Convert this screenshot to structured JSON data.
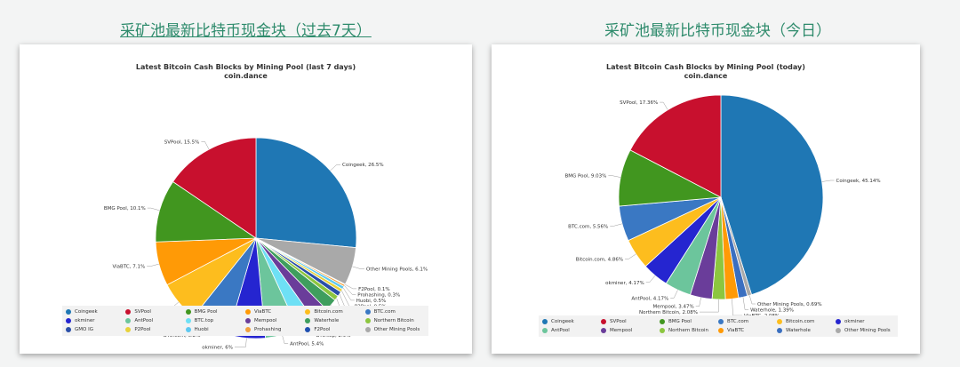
{
  "page": {
    "heading_left": "采矿池最新比特币现金块（过去7天）",
    "heading_right": "采矿池最新比特币现金块（今日）"
  },
  "chart_data": [
    {
      "type": "pie",
      "title": "Latest Bitcoin Cash Blocks by Mining Pool (last 7 days)",
      "subtitle": "coin.dance",
      "slices": [
        {
          "label": "Coingeek",
          "value": 26.5,
          "display": "26.5%",
          "color": "#1f77b4"
        },
        {
          "label": "Other Mining Pools",
          "value": 6.1,
          "display": "6.1%",
          "color": "#a9a9a9"
        },
        {
          "label": "F2Pool",
          "value": 0.1,
          "display": "0.1%",
          "color": "#1f4fb0"
        },
        {
          "label": "Prohashing",
          "value": 0.3,
          "display": "0.3%",
          "color": "#f2a03d"
        },
        {
          "label": "Huobi",
          "value": 0.5,
          "display": "0.5%",
          "color": "#5ec8f0"
        },
        {
          "label": "P2Pool",
          "value": 0.5,
          "display": "0.5%",
          "color": "#e8d23a"
        },
        {
          "label": "GMO IG",
          "value": 0.8,
          "display": "0.8%",
          "color": "#2a4fa8"
        },
        {
          "label": "Northern Bitcoin",
          "value": 0.8,
          "display": "0.8%",
          "color": "#8cc63f"
        },
        {
          "label": "Waterhole",
          "value": 2,
          "display": "2%",
          "color": "#3f9e5e"
        },
        {
          "label": "Mempool",
          "value": 2.6,
          "display": "2.6%",
          "color": "#6a3d9a"
        },
        {
          "label": "BTC.top",
          "value": 2.9,
          "display": "2.9%",
          "color": "#6ee0f5"
        },
        {
          "label": "AntPool",
          "value": 5.4,
          "display": "5.4%",
          "color": "#6cc59c"
        },
        {
          "label": "okminer",
          "value": 6,
          "display": "6%",
          "color": "#2525d0"
        },
        {
          "label": "BTC.com",
          "value": 6.2,
          "display": "6.2%",
          "color": "#3a78c3"
        },
        {
          "label": "Bitcoin.com",
          "value": 6.6,
          "display": "6.6%",
          "color": "#fdbd1e"
        },
        {
          "label": "ViaBTC",
          "value": 7.1,
          "display": "7.1%",
          "color": "#ff9a06"
        },
        {
          "label": "BMG Pool",
          "value": 10.1,
          "display": "10.1%",
          "color": "#41961f"
        },
        {
          "label": "SVPool",
          "value": 15.5,
          "display": "15.5%",
          "color": "#c8102e"
        }
      ],
      "legend": [
        {
          "label": "Coingeek",
          "color": "#1f77b4"
        },
        {
          "label": "SVPool",
          "color": "#c8102e"
        },
        {
          "label": "BMG Pool",
          "color": "#41961f"
        },
        {
          "label": "ViaBTC",
          "color": "#ff9a06"
        },
        {
          "label": "Bitcoin.com",
          "color": "#fdbd1e"
        },
        {
          "label": "BTC.com",
          "color": "#3a78c3"
        },
        {
          "label": "okminer",
          "color": "#2525d0"
        },
        {
          "label": "AntPool",
          "color": "#6cc59c"
        },
        {
          "label": "BTC.top",
          "color": "#6ee0f5"
        },
        {
          "label": "Mempool",
          "color": "#6a3d9a"
        },
        {
          "label": "Waterhole",
          "color": "#3f9e5e"
        },
        {
          "label": "Northern Bitcoin",
          "color": "#8cc63f"
        },
        {
          "label": "GMO IG",
          "color": "#2a4fa8"
        },
        {
          "label": "P2Pool",
          "color": "#e8d23a"
        },
        {
          "label": "Huobi",
          "color": "#5ec8f0"
        },
        {
          "label": "Prohashing",
          "color": "#f2a03d"
        },
        {
          "label": "F2Pool",
          "color": "#1f4fb0"
        },
        {
          "label": "Other Mining Pools",
          "color": "#a9a9a9"
        }
      ]
    },
    {
      "type": "pie",
      "title": "Latest Bitcoin Cash Blocks by Mining Pool (today)",
      "subtitle": "coin.dance",
      "slices": [
        {
          "label": "Coingeek",
          "value": 45.14,
          "display": "45.14%",
          "color": "#1f77b4"
        },
        {
          "label": "Other Mining Pools",
          "value": 0.69,
          "display": "0.69%",
          "color": "#a9a9a9"
        },
        {
          "label": "Waterhole",
          "value": 1.39,
          "display": "1.39%",
          "color": "#3a6fc0"
        },
        {
          "label": "ViaBTC",
          "value": 2.08,
          "display": "2.08%",
          "color": "#ff9a06"
        },
        {
          "label": "Northern Bitcoin",
          "value": 2.08,
          "display": "2.08%",
          "color": "#8cc63f"
        },
        {
          "label": "Mempool",
          "value": 3.47,
          "display": "3.47%",
          "color": "#6a3d9a"
        },
        {
          "label": "AntPool",
          "value": 4.17,
          "display": "4.17%",
          "color": "#6cc59c"
        },
        {
          "label": "okminer",
          "value": 4.17,
          "display": "4.17%",
          "color": "#2525d0"
        },
        {
          "label": "Bitcoin.com",
          "value": 4.86,
          "display": "4.86%",
          "color": "#fdbd1e"
        },
        {
          "label": "BTC.com",
          "value": 5.56,
          "display": "5.56%",
          "color": "#3a78c3"
        },
        {
          "label": "BMG Pool",
          "value": 9.03,
          "display": "9.03%",
          "color": "#41961f"
        },
        {
          "label": "SVPool",
          "value": 17.36,
          "display": "17.36%",
          "color": "#c8102e"
        }
      ],
      "legend": [
        {
          "label": "Coingeek",
          "color": "#1f77b4"
        },
        {
          "label": "SVPool",
          "color": "#c8102e"
        },
        {
          "label": "BMG Pool",
          "color": "#41961f"
        },
        {
          "label": "BTC.com",
          "color": "#3a78c3"
        },
        {
          "label": "Bitcoin.com",
          "color": "#fdbd1e"
        },
        {
          "label": "okminer",
          "color": "#2525d0"
        },
        {
          "label": "AntPool",
          "color": "#6cc59c"
        },
        {
          "label": "Mempool",
          "color": "#6a3d9a"
        },
        {
          "label": "Northern Bitcoin",
          "color": "#8cc63f"
        },
        {
          "label": "ViaBTC",
          "color": "#ff9a06"
        },
        {
          "label": "Waterhole",
          "color": "#3a6fc0"
        },
        {
          "label": "Other Mining Pools",
          "color": "#a9a9a9"
        }
      ]
    }
  ]
}
